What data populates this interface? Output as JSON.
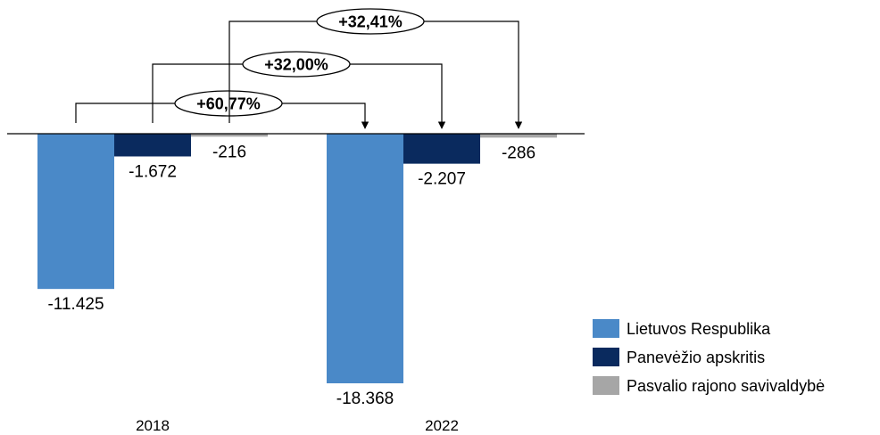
{
  "chart_data": {
    "type": "bar",
    "categories": [
      "2018",
      "2022"
    ],
    "series": [
      {
        "name": "Lietuvos Respublika",
        "values": [
          -11425,
          -18368
        ],
        "labels": [
          "-11.425",
          "-18.368"
        ],
        "color": "#4a89c8"
      },
      {
        "name": "Panevėžio apskritis",
        "values": [
          -1672,
          -2207
        ],
        "labels": [
          "-1.672",
          "-2.207"
        ],
        "color": "#0a2a5e"
      },
      {
        "name": "Pasvalio rajono savivaldybė",
        "values": [
          -216,
          -286
        ],
        "labels": [
          "-216",
          "-286"
        ],
        "color": "#a6a6a6"
      }
    ],
    "annotations": [
      {
        "series": "Lietuvos Respublika",
        "text": "+60,77%"
      },
      {
        "series": "Panevėžio apskritis",
        "text": "+32,00%"
      },
      {
        "series": "Pasvalio rajono savivaldybė",
        "text": "+32,41%"
      }
    ],
    "title": "",
    "xlabel": "",
    "ylabel": "",
    "ylim": [
      -18368,
      0
    ],
    "grid": false,
    "legend": "bottom-right"
  }
}
